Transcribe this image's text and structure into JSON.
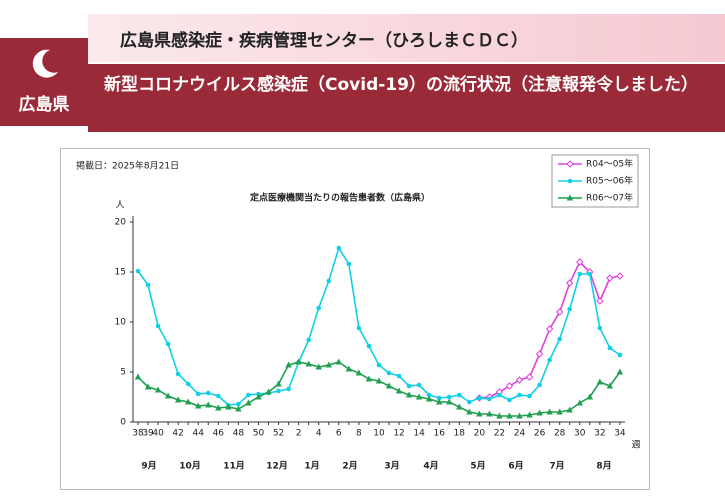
{
  "header": {
    "org": "広島県感染症・疾病管理センター（ひろしまＣＤＣ）",
    "prefecture": "広島県",
    "title": "新型コロナウイルス感染症（Covid-19）の流行状況（注意報発令しました）"
  },
  "chart_data": {
    "type": "line",
    "date": "掲載日：2025年8月21日",
    "title": "定点医療機関当たりの報告患者数（広島県）",
    "y_label": "人",
    "x_label": "週",
    "categories": [
      "38",
      "39",
      "40",
      null,
      "42",
      null,
      "44",
      null,
      "46",
      null,
      "48",
      null,
      "50",
      null,
      "52",
      null,
      "2",
      null,
      "4",
      null,
      "6",
      null,
      "8",
      null,
      "10",
      null,
      "12",
      null,
      "14",
      null,
      "16",
      null,
      "18",
      null,
      "20",
      null,
      "22",
      null,
      "24",
      null,
      "26",
      null,
      "28",
      null,
      "30",
      null,
      "32",
      null,
      "34"
    ],
    "month_labels": [
      "9月",
      "10月",
      "11月",
      "12月",
      "1月",
      "2月",
      "3月",
      "4月",
      "5月",
      "6月",
      "7月",
      "8月"
    ],
    "ylim": [
      0,
      20
    ],
    "yticks": [
      0,
      5,
      10,
      15,
      20
    ],
    "series": [
      {
        "name": "R04～05年",
        "color": "#e040e0",
        "marker": "diamond",
        "values": [
          null,
          null,
          null,
          null,
          null,
          null,
          null,
          null,
          null,
          null,
          null,
          null,
          null,
          null,
          null,
          null,
          null,
          null,
          null,
          null,
          null,
          null,
          null,
          null,
          null,
          null,
          null,
          null,
          null,
          null,
          null,
          null,
          null,
          null,
          2.4,
          2.5,
          3.0,
          3.6,
          4.2,
          4.5,
          6.8,
          9.3,
          11.0,
          13.9,
          16.0,
          15.0,
          12.1,
          14.4,
          14.6
        ]
      },
      {
        "name": "R05～06年",
        "color": "#10d0e8",
        "marker": "circle",
        "values": [
          15.1,
          13.7,
          9.6,
          7.8,
          4.8,
          3.8,
          2.8,
          2.9,
          2.6,
          1.7,
          1.8,
          2.7,
          2.8,
          2.9,
          3.1,
          3.3,
          6.0,
          8.2,
          11.4,
          14.1,
          17.4,
          15.8,
          9.4,
          7.6,
          5.7,
          4.9,
          4.6,
          3.6,
          3.7,
          2.7,
          2.4,
          2.5,
          2.7,
          2.0,
          2.4,
          2.3,
          2.7,
          2.2,
          2.7,
          2.6,
          3.7,
          6.2,
          8.3,
          11.3,
          14.8,
          14.8,
          9.4,
          7.4,
          6.7
        ]
      },
      {
        "name": "R06～07年",
        "color": "#20a050",
        "marker": "triangle",
        "values": [
          4.5,
          3.5,
          3.2,
          2.6,
          2.2,
          2.0,
          1.6,
          1.7,
          1.4,
          1.5,
          1.3,
          1.9,
          2.5,
          3.0,
          3.8,
          5.7,
          6.0,
          5.8,
          5.5,
          5.7,
          6.0,
          5.3,
          4.9,
          4.3,
          4.1,
          3.6,
          3.1,
          2.7,
          2.5,
          2.3,
          2.0,
          2.0,
          1.5,
          1.0,
          0.8,
          0.8,
          0.6,
          0.6,
          0.6,
          0.7,
          0.9,
          1.0,
          1.0,
          1.2,
          1.9,
          2.5,
          4.0,
          3.6,
          5.0
        ]
      }
    ]
  }
}
